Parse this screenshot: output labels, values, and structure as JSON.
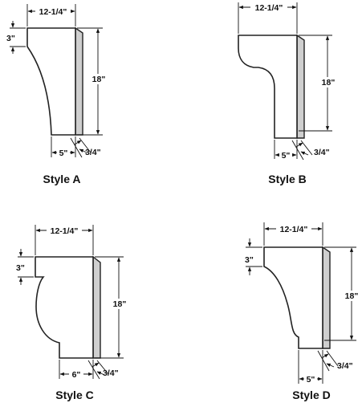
{
  "diagram": {
    "styles": [
      {
        "id": "A",
        "title": "Style A",
        "width_label": "12-1/4\"",
        "height_label": "18\"",
        "top_label": "3\"",
        "bottom_label": "5\"",
        "thickness_label": "3/4\""
      },
      {
        "id": "B",
        "title": "Style B",
        "width_label": "12-1/4\"",
        "height_label": "18\"",
        "bottom_label": "5\"",
        "thickness_label": "3/4\""
      },
      {
        "id": "C",
        "title": "Style C",
        "width_label": "12-1/4\"",
        "height_label": "18\"",
        "top_label": "3\"",
        "bottom_label": "6\"",
        "thickness_label": "3/4\""
      },
      {
        "id": "D",
        "title": "Style D",
        "width_label": "12-1/4\"",
        "height_label": "18\"",
        "top_label": "3\"",
        "bottom_label": "5\"",
        "thickness_label": "3/4\""
      }
    ]
  }
}
